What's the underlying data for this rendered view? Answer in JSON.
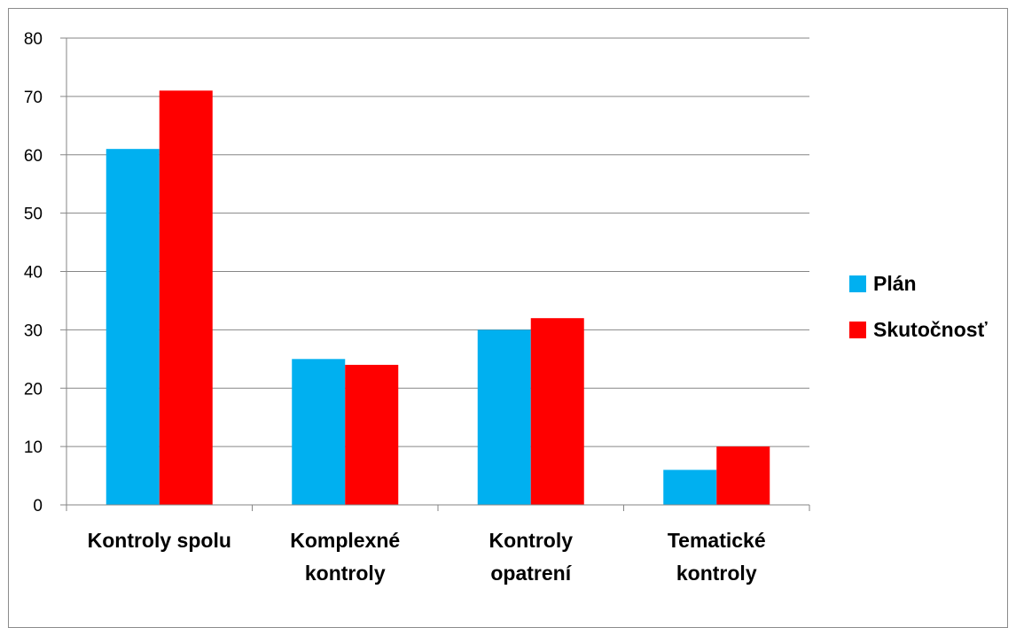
{
  "chart_data": {
    "type": "bar",
    "categories": [
      [
        "Kontroly spolu"
      ],
      [
        "Komplexné",
        "kontroly"
      ],
      [
        "Kontroly",
        "opatrení"
      ],
      [
        "Tematické",
        "kontroly"
      ]
    ],
    "series": [
      {
        "name": "Plán",
        "color": "#00b0f0",
        "values": [
          61,
          25,
          30,
          6
        ]
      },
      {
        "name": "Skutočnosť",
        "color": "#ff0000",
        "values": [
          71,
          24,
          32,
          10
        ]
      }
    ],
    "ylim": [
      0,
      80
    ],
    "yticks": [
      0,
      10,
      20,
      30,
      40,
      50,
      60,
      70,
      80
    ],
    "grid": true,
    "legend": "right"
  }
}
